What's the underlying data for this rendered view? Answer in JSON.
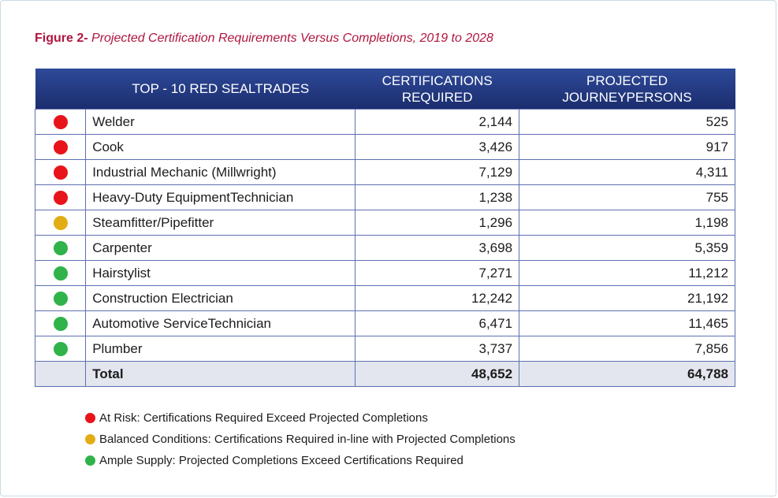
{
  "figure": {
    "label": "Figure 2-",
    "title": "Projected Certification Requirements Versus Completions, 2019 to 2028"
  },
  "colors": {
    "at_risk": "#e8141b",
    "balanced": "#e2ad14",
    "ample": "#2fb34a",
    "header_bg": "#233a86",
    "border": "#5e70b0"
  },
  "chart_data": {
    "type": "table",
    "columns": [
      "TOP - 10 RED SEALTRADES",
      "CERTIFICATIONS REQUIRED",
      "PROJECTED JOURNEYPERSONS"
    ],
    "rows": [
      {
        "status": "at_risk",
        "trade": "Welder",
        "required": "2,144",
        "projected": "525"
      },
      {
        "status": "at_risk",
        "trade": "Cook",
        "required": "3,426",
        "projected": "917"
      },
      {
        "status": "at_risk",
        "trade": "Industrial Mechanic (Millwright)",
        "required": "7,129",
        "projected": "4,311"
      },
      {
        "status": "at_risk",
        "trade": "Heavy-Duty EquipmentTechnician",
        "required": "1,238",
        "projected": "755"
      },
      {
        "status": "balanced",
        "trade": "Steamfitter/Pipefitter",
        "required": "1,296",
        "projected": "1,198"
      },
      {
        "status": "ample",
        "trade": "Carpenter",
        "required": "3,698",
        "projected": "5,359"
      },
      {
        "status": "ample",
        "trade": "Hairstylist",
        "required": "7,271",
        "projected": "11,212"
      },
      {
        "status": "ample",
        "trade": "Construction Electrician",
        "required": "12,242",
        "projected": "21,192"
      },
      {
        "status": "ample",
        "trade": "Automotive ServiceTechnician",
        "required": "6,471",
        "projected": "11,465"
      },
      {
        "status": "ample",
        "trade": "Plumber",
        "required": "3,737",
        "projected": "7,856"
      }
    ],
    "total": {
      "label": "Total",
      "required": "48,652",
      "projected": "64,788"
    }
  },
  "legend": [
    {
      "status": "at_risk",
      "text": "At Risk: Certifications Required Exceed Projected Completions"
    },
    {
      "status": "balanced",
      "text": "Balanced Conditions: Certifications Required in-line with Projected Completions"
    },
    {
      "status": "ample",
      "text": "Ample Supply: Projected Completions Exceed Certifications Required"
    }
  ]
}
